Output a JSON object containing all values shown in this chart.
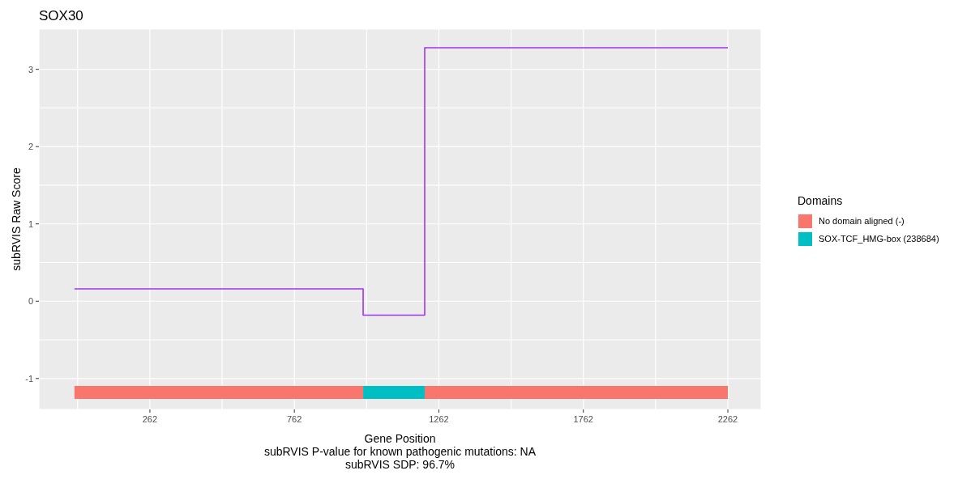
{
  "chart_data": {
    "type": "step",
    "title": "SOX30",
    "xlabel": "Gene Position",
    "ylabel": "subRVIS Raw Score",
    "legend_title": "Domains",
    "annotations": [
      "subRVIS P-value for known pathogenic mutations: NA",
      "subRVIS SDP: 96.7%"
    ],
    "xlim": [
      -122,
      2377
    ],
    "xticks": [
      {
        "value": 12,
        "label": null
      },
      262,
      {
        "value": 512,
        "label": null
      },
      762,
      {
        "value": 1012,
        "label": null
      },
      1262,
      {
        "value": 1512,
        "label": null
      },
      1762,
      {
        "value": 2012,
        "label": null
      },
      2262
    ],
    "ylim": [
      -1.4,
      3.52
    ],
    "yticks": [
      -1,
      {
        "value": -0.5,
        "label": null
      },
      0,
      {
        "value": 0.5,
        "label": null
      },
      1,
      {
        "value": 1.5,
        "label": null
      },
      2,
      {
        "value": 2.5,
        "label": null
      },
      3
    ],
    "grid": true,
    "legend": "right",
    "series": [
      {
        "type": "step",
        "color": "#a035f0",
        "x": [
          1,
          1000,
          1213,
          2262
        ],
        "values": [
          0.16,
          -0.18,
          3.28,
          3.28
        ]
      },
      {
        "type": "line",
        "name": "No domain aligned (-)",
        "color": "#f8766d",
        "x": [
          1,
          1000
        ],
        "values": [
          -1.18,
          -1.18
        ]
      },
      {
        "type": "line",
        "color": "#f8766d",
        "x": [
          1213,
          2262
        ],
        "values": [
          -1.18,
          -1.18
        ]
      },
      {
        "type": "line",
        "name": "SOX-TCF_HMG-box (238684)",
        "color": "#00bfc4",
        "x": [
          1000,
          1213
        ],
        "values": [
          -1.18,
          -1.18
        ]
      }
    ]
  }
}
